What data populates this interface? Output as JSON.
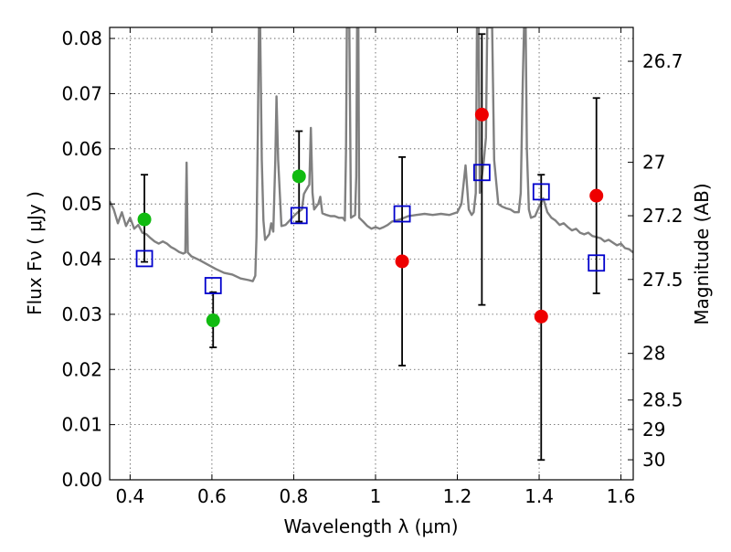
{
  "chart_data": {
    "type": "scatter",
    "xlabel": "Wavelength  λ (μm)",
    "ylabel": "Flux  Fν  ( μJy )",
    "y2label": "Magnitude (AB)",
    "xlim": [
      0.35,
      1.63
    ],
    "ylim": [
      0.0,
      0.082
    ],
    "grid": true,
    "x_ticks": [
      0.4,
      0.6,
      0.8,
      1.0,
      1.2,
      1.4,
      1.6
    ],
    "x_tick_labels": [
      "0.4",
      "0.6",
      "0.8",
      "1",
      "1.2",
      "1.4",
      "1.6"
    ],
    "y_ticks": [
      0.0,
      0.01,
      0.02,
      0.03,
      0.04,
      0.05,
      0.06,
      0.07,
      0.08
    ],
    "y_tick_labels": [
      "0.00",
      "0.01",
      "0.02",
      "0.03",
      "0.04",
      "0.05",
      "0.06",
      "0.07",
      "0.08"
    ],
    "y2_ticks": [
      26.7,
      27,
      27.2,
      27.5,
      28,
      28.5,
      29,
      30
    ],
    "y2_tick_labels": [
      "26.7",
      "27",
      "27.2",
      "27.5",
      "28",
      "28.5",
      "29",
      "30"
    ],
    "colors": {
      "template": "#808080",
      "green": "#11bb11",
      "red": "#ee0000",
      "square": "#0000cc",
      "errorbar": "#000000",
      "grid": "#555555"
    },
    "series": [
      {
        "marker": "line",
        "color": "#808080",
        "points": [
          [
            0.35,
            0.0505
          ],
          [
            0.36,
            0.049
          ],
          [
            0.37,
            0.0465
          ],
          [
            0.38,
            0.0485
          ],
          [
            0.39,
            0.046
          ],
          [
            0.4,
            0.0475
          ],
          [
            0.41,
            0.0455
          ],
          [
            0.42,
            0.0462
          ],
          [
            0.43,
            0.0448
          ],
          [
            0.44,
            0.0445
          ],
          [
            0.45,
            0.0438
          ],
          [
            0.46,
            0.0432
          ],
          [
            0.47,
            0.0428
          ],
          [
            0.48,
            0.0432
          ],
          [
            0.49,
            0.0428
          ],
          [
            0.5,
            0.0422
          ],
          [
            0.51,
            0.0418
          ],
          [
            0.52,
            0.0413
          ],
          [
            0.53,
            0.041
          ],
          [
            0.535,
            0.0412
          ],
          [
            0.538,
            0.0575
          ],
          [
            0.541,
            0.0412
          ],
          [
            0.55,
            0.0405
          ],
          [
            0.57,
            0.0398
          ],
          [
            0.59,
            0.039
          ],
          [
            0.61,
            0.0382
          ],
          [
            0.63,
            0.0375
          ],
          [
            0.65,
            0.0372
          ],
          [
            0.67,
            0.0365
          ],
          [
            0.69,
            0.0362
          ],
          [
            0.7,
            0.036
          ],
          [
            0.706,
            0.037
          ],
          [
            0.709,
            0.044
          ],
          [
            0.712,
            0.062
          ],
          [
            0.715,
            0.082
          ],
          [
            0.718,
            0.082
          ],
          [
            0.722,
            0.058
          ],
          [
            0.726,
            0.047
          ],
          [
            0.73,
            0.0435
          ],
          [
            0.74,
            0.0445
          ],
          [
            0.745,
            0.0465
          ],
          [
            0.75,
            0.045
          ],
          [
            0.755,
            0.058
          ],
          [
            0.758,
            0.0695
          ],
          [
            0.762,
            0.058
          ],
          [
            0.77,
            0.046
          ],
          [
            0.78,
            0.0462
          ],
          [
            0.79,
            0.047
          ],
          [
            0.8,
            0.0478
          ],
          [
            0.81,
            0.0485
          ],
          [
            0.82,
            0.049
          ],
          [
            0.825,
            0.0518
          ],
          [
            0.83,
            0.0525
          ],
          [
            0.838,
            0.0535
          ],
          [
            0.842,
            0.0638
          ],
          [
            0.846,
            0.052
          ],
          [
            0.85,
            0.049
          ],
          [
            0.86,
            0.05
          ],
          [
            0.865,
            0.0513
          ],
          [
            0.87,
            0.0483
          ],
          [
            0.88,
            0.048
          ],
          [
            0.89,
            0.0478
          ],
          [
            0.9,
            0.0478
          ],
          [
            0.91,
            0.0475
          ],
          [
            0.92,
            0.0475
          ],
          [
            0.925,
            0.047
          ],
          [
            0.928,
            0.06
          ],
          [
            0.93,
            0.082
          ],
          [
            0.936,
            0.082
          ],
          [
            0.94,
            0.0475
          ],
          [
            0.95,
            0.048
          ],
          [
            0.953,
            0.055
          ],
          [
            0.955,
            0.082
          ],
          [
            0.958,
            0.082
          ],
          [
            0.96,
            0.0475
          ],
          [
            0.97,
            0.0468
          ],
          [
            0.98,
            0.046
          ],
          [
            0.99,
            0.0455
          ],
          [
            1.0,
            0.0458
          ],
          [
            1.01,
            0.0455
          ],
          [
            1.02,
            0.0458
          ],
          [
            1.03,
            0.0462
          ],
          [
            1.04,
            0.0468
          ],
          [
            1.05,
            0.047
          ],
          [
            1.06,
            0.0472
          ],
          [
            1.08,
            0.0478
          ],
          [
            1.1,
            0.048
          ],
          [
            1.12,
            0.0482
          ],
          [
            1.14,
            0.048
          ],
          [
            1.16,
            0.0482
          ],
          [
            1.18,
            0.048
          ],
          [
            1.2,
            0.0485
          ],
          [
            1.21,
            0.05
          ],
          [
            1.22,
            0.057
          ],
          [
            1.228,
            0.049
          ],
          [
            1.235,
            0.048
          ],
          [
            1.24,
            0.0485
          ],
          [
            1.245,
            0.052
          ],
          [
            1.248,
            0.082
          ],
          [
            1.252,
            0.082
          ],
          [
            1.255,
            0.052
          ],
          [
            1.26,
            0.055
          ],
          [
            1.265,
            0.058
          ],
          [
            1.27,
            0.062
          ],
          [
            1.273,
            0.082
          ],
          [
            1.276,
            0.082
          ],
          [
            1.28,
            0.082
          ],
          [
            1.285,
            0.082
          ],
          [
            1.29,
            0.058
          ],
          [
            1.3,
            0.05
          ],
          [
            1.31,
            0.0495
          ],
          [
            1.32,
            0.0492
          ],
          [
            1.33,
            0.049
          ],
          [
            1.34,
            0.0485
          ],
          [
            1.35,
            0.0485
          ],
          [
            1.355,
            0.052
          ],
          [
            1.36,
            0.072
          ],
          [
            1.363,
            0.082
          ],
          [
            1.367,
            0.082
          ],
          [
            1.37,
            0.06
          ],
          [
            1.375,
            0.049
          ],
          [
            1.38,
            0.0475
          ],
          [
            1.39,
            0.0478
          ],
          [
            1.4,
            0.0495
          ],
          [
            1.41,
            0.051
          ],
          [
            1.42,
            0.0485
          ],
          [
            1.43,
            0.0475
          ],
          [
            1.44,
            0.047
          ],
          [
            1.45,
            0.0462
          ],
          [
            1.46,
            0.0465
          ],
          [
            1.47,
            0.0458
          ],
          [
            1.48,
            0.0452
          ],
          [
            1.49,
            0.0455
          ],
          [
            1.5,
            0.0448
          ],
          [
            1.51,
            0.0445
          ],
          [
            1.52,
            0.0448
          ],
          [
            1.53,
            0.0442
          ],
          [
            1.54,
            0.044
          ],
          [
            1.55,
            0.0438
          ],
          [
            1.56,
            0.0432
          ],
          [
            1.57,
            0.0435
          ],
          [
            1.58,
            0.043
          ],
          [
            1.59,
            0.0425
          ],
          [
            1.6,
            0.0428
          ],
          [
            1.61,
            0.042
          ],
          [
            1.62,
            0.0418
          ],
          [
            1.63,
            0.0412
          ]
        ]
      },
      {
        "marker": "circle",
        "color": "#11bb11",
        "points": [
          {
            "x": 0.435,
            "y": 0.0472
          },
          {
            "x": 0.603,
            "y": 0.0289
          },
          {
            "x": 0.813,
            "y": 0.055
          }
        ],
        "error_bars": [
          {
            "x": 0.435,
            "low": 0.0395,
            "high": 0.0553
          },
          {
            "x": 0.603,
            "low": 0.024,
            "high": 0.034
          },
          {
            "x": 0.813,
            "low": 0.0468,
            "high": 0.0632
          }
        ]
      },
      {
        "marker": "circle",
        "color": "#ee0000",
        "points": [
          {
            "x": 1.065,
            "y": 0.0396
          },
          {
            "x": 1.26,
            "y": 0.0662
          },
          {
            "x": 1.405,
            "y": 0.0296
          },
          {
            "x": 1.54,
            "y": 0.0515
          }
        ],
        "error_bars": [
          {
            "x": 1.065,
            "low": 0.0207,
            "high": 0.0585
          },
          {
            "x": 1.26,
            "low": 0.0317,
            "high": 0.0808
          },
          {
            "x": 1.405,
            "low": 0.0036,
            "high": 0.0553
          },
          {
            "x": 1.54,
            "low": 0.0338,
            "high": 0.0692
          }
        ]
      },
      {
        "marker": "square",
        "color": "#0000cc",
        "points": [
          {
            "x": 0.435,
            "y": 0.0401
          },
          {
            "x": 0.603,
            "y": 0.0352
          },
          {
            "x": 0.813,
            "y": 0.0479
          },
          {
            "x": 1.065,
            "y": 0.0482
          },
          {
            "x": 1.26,
            "y": 0.0557
          },
          {
            "x": 1.405,
            "y": 0.0522
          },
          {
            "x": 1.54,
            "y": 0.0393
          }
        ]
      }
    ]
  }
}
